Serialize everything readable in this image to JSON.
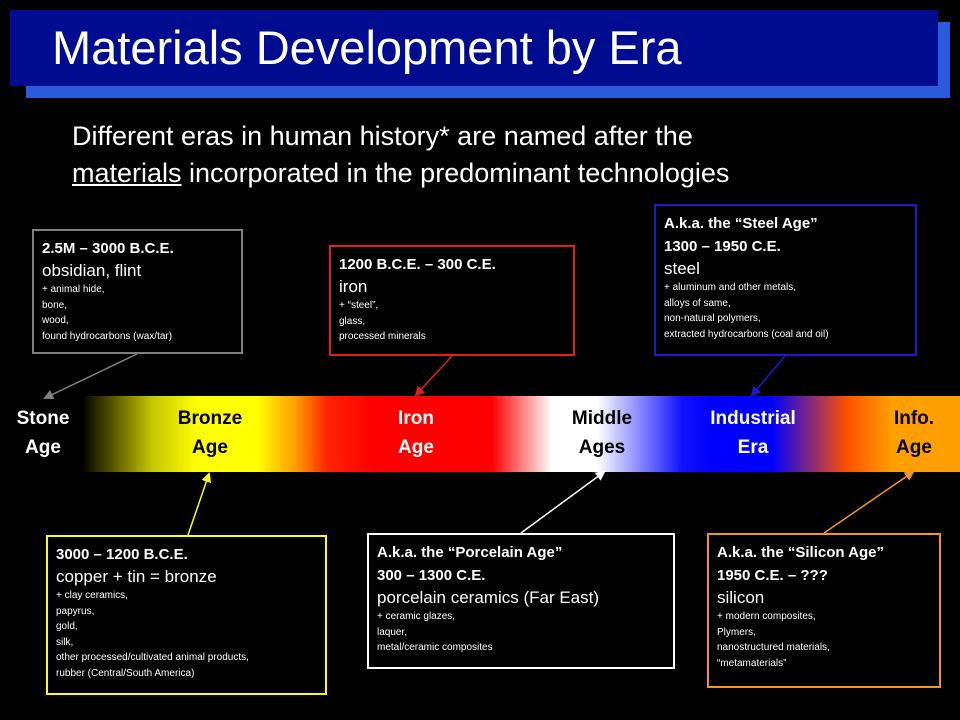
{
  "title": "Materials Development by Era",
  "intro": {
    "line1": "Different eras in human history* are named after the",
    "line2_underlined": "materials",
    "line2_rest": " incorporated in the predominant technologies"
  },
  "eras": [
    {
      "line1": "Stone",
      "line2": "Age",
      "color": "#ffffff"
    },
    {
      "line1": "Bronze",
      "line2": "Age",
      "color": "#000000"
    },
    {
      "line1": "Iron",
      "line2": "Age",
      "color": "#ffffff"
    },
    {
      "line1": "Middle",
      "line2": "Ages",
      "color": "#000000"
    },
    {
      "line1": "Industrial",
      "line2": "Era",
      "color": "#ffffff"
    },
    {
      "line1": "Info.",
      "line2": "Age",
      "color": "#000000"
    }
  ],
  "boxes": {
    "stone": {
      "border_color": "#808080",
      "dates": "2.5M – 3000 B.C.E.",
      "main": "obsidian, flint",
      "details": [
        "+ animal hide,",
        "bone,",
        "wood,",
        "found hydrocarbons (wax/tar)"
      ]
    },
    "iron": {
      "border_color": "#e02020",
      "dates": "1200 B.C.E. – 300 C.E.",
      "main": "iron",
      "details": [
        "+ “steel”,",
        "glass,",
        "processed minerals"
      ]
    },
    "industrial": {
      "border_color": "#1a1ad0",
      "aka": "A.k.a. the “Steel Age”",
      "dates": "1300 – 1950 C.E.",
      "main": "steel",
      "details": [
        "+ aluminum and other metals,",
        "alloys of same,",
        "non-natural polymers,",
        "extracted hydrocarbons (coal and oil)"
      ]
    },
    "bronze": {
      "border_color": "#ffff00",
      "dates": "3000 – 1200 B.C.E.",
      "main": "copper + tin = bronze",
      "details": [
        "+ clay ceramics,",
        "papyrus,",
        "gold,",
        "silk,",
        "other processed/cultivated animal products,",
        "rubber (Central/South America)"
      ]
    },
    "middle": {
      "border_color": "#ffffff",
      "aka": "A.k.a. the “Porcelain Age”",
      "dates": "300 – 1300 C.E.",
      "main": "porcelain ceramics (Far East)",
      "details": [
        "+ ceramic glazes,",
        "laquer,",
        "metal/ceramic composites"
      ]
    },
    "info": {
      "border_color": "#f7941d",
      "aka": "A.k.a. the “Silicon Age”",
      "dates": "1950 C.E. – ???",
      "main": "silicon",
      "details": [
        "+ modern composites,",
        "Plymers,",
        "nanostructured materials,",
        "“metamaterials”"
      ]
    }
  }
}
